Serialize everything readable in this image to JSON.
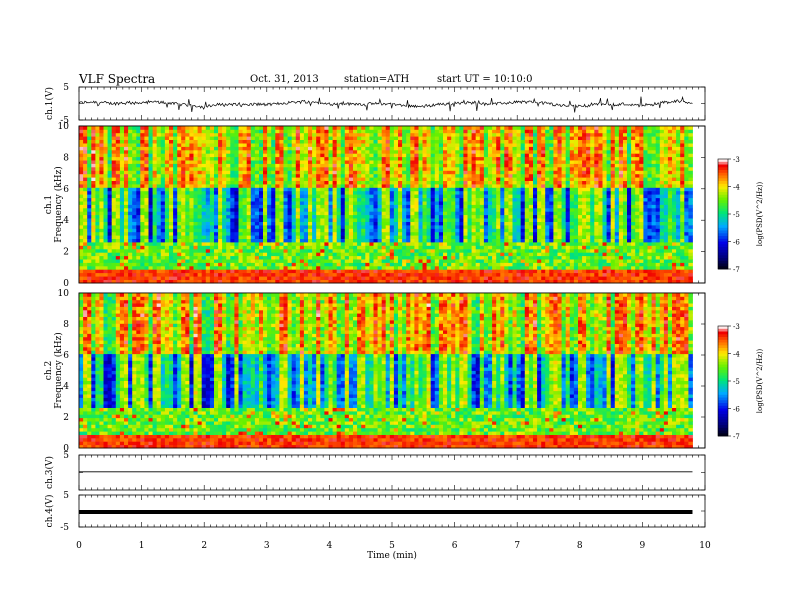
{
  "header": {
    "title": "VLF Spectra",
    "date": "Oct. 31, 2013",
    "station": "station=ATH",
    "start": "start UT =   10:10:0"
  },
  "chart_data": [
    {
      "type": "line",
      "ylabel": "ch.1(V)",
      "yticks": [
        "5",
        "-5"
      ],
      "ylim": [
        -5,
        5
      ],
      "description_level": "noisy waveform fluctuating roughly between -1.5 V and +1 V"
    },
    {
      "type": "heatmap",
      "ylabel": "ch.1",
      "ylabel2": "Frequency (kHz)",
      "yticks": [
        "0",
        "2",
        "4",
        "6",
        "8",
        "10"
      ],
      "ylim": [
        0,
        10
      ],
      "colorbar": {
        "label": "log(PSD(V^2/Hz))",
        "ticks": [
          "-3",
          "-4",
          "-5",
          "-6",
          "-7"
        ],
        "range": [
          -7,
          -3
        ]
      }
    },
    {
      "type": "heatmap",
      "ylabel": "ch.2",
      "ylabel2": "Frequency (kHz)",
      "yticks": [
        "0",
        "2",
        "4",
        "6",
        "8",
        "10"
      ],
      "ylim": [
        0,
        10
      ],
      "colorbar": {
        "label": "log(PSD(V^2/Hz))",
        "ticks": [
          "-3",
          "-4",
          "-5",
          "-6",
          "-7"
        ],
        "range": [
          -7,
          -3
        ]
      }
    },
    {
      "type": "line",
      "ylabel": "ch.3(V)",
      "yticks": [
        "5"
      ],
      "ylim": [
        -5,
        5
      ],
      "level": 0.2
    },
    {
      "type": "line",
      "ylabel": "ch.4(V)",
      "yticks": [
        "5",
        "-5"
      ],
      "ylim": [
        -5,
        5
      ],
      "level": -0.3
    }
  ],
  "xaxis": {
    "label": "Time (min)",
    "ticks": [
      "0",
      "1",
      "2",
      "3",
      "4",
      "5",
      "6",
      "7",
      "8",
      "9",
      "10"
    ],
    "xlim": [
      0,
      10
    ],
    "data_end": 9.8
  }
}
